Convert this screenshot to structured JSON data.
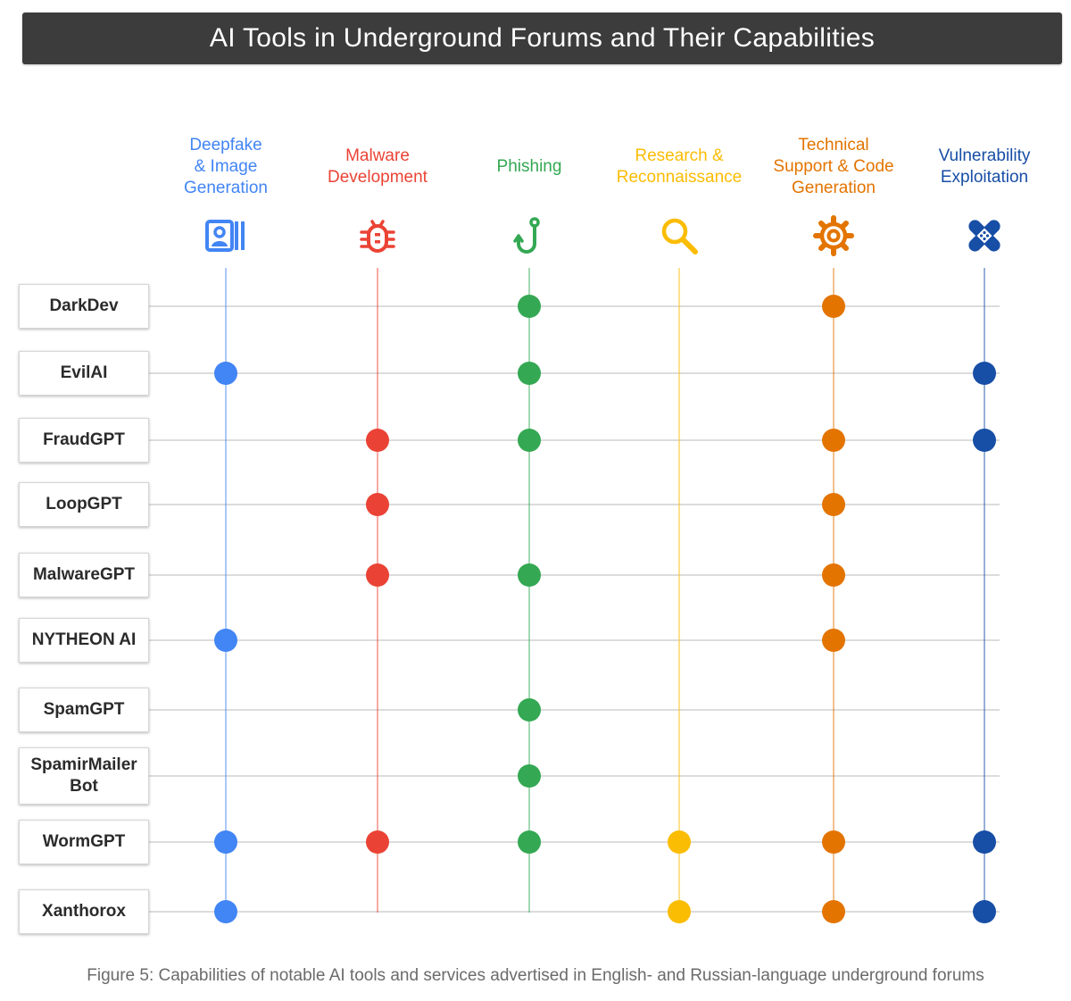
{
  "title": "AI Tools in Underground Forums and Their Capabilities",
  "columns": [
    {
      "id": "deepfake",
      "label": "Deepfake\n& Image\nGeneration",
      "icon": "image-generation-icon",
      "color": "#4285F4"
    },
    {
      "id": "malware",
      "label": "Malware\nDevelopment",
      "icon": "bug-icon",
      "color": "#EA4335"
    },
    {
      "id": "phishing",
      "label": "Phishing",
      "icon": "fishing-hook-icon",
      "color": "#34A853"
    },
    {
      "id": "recon",
      "label": "Research &\nReconnaissance",
      "icon": "magnifying-glass-icon",
      "color": "#FBBC04"
    },
    {
      "id": "techsupport",
      "label": "Technical\nSupport & Code\nGeneration",
      "icon": "gear-icon",
      "color": "#E37400"
    },
    {
      "id": "vuln",
      "label": "Vulnerability\nExploitation",
      "icon": "bandage-icon",
      "color": "#174EA6"
    }
  ],
  "rows": [
    {
      "name": "DarkDev",
      "capabilities": [
        "phishing",
        "techsupport"
      ]
    },
    {
      "name": "EvilAI",
      "capabilities": [
        "deepfake",
        "phishing",
        "vuln"
      ]
    },
    {
      "name": "FraudGPT",
      "capabilities": [
        "malware",
        "phishing",
        "techsupport",
        "vuln"
      ]
    },
    {
      "name": "LoopGPT",
      "capabilities": [
        "malware",
        "techsupport"
      ]
    },
    {
      "name": "MalwareGPT",
      "capabilities": [
        "malware",
        "phishing",
        "techsupport"
      ]
    },
    {
      "name": "NYTHEON AI",
      "capabilities": [
        "deepfake",
        "techsupport"
      ]
    },
    {
      "name": "SpamGPT",
      "capabilities": [
        "phishing"
      ]
    },
    {
      "name": "SpamirMailer\nBot",
      "capabilities": [
        "phishing"
      ]
    },
    {
      "name": "WormGPT",
      "capabilities": [
        "deepfake",
        "malware",
        "phishing",
        "recon",
        "techsupport",
        "vuln"
      ]
    },
    {
      "name": "Xanthorox",
      "capabilities": [
        "deepfake",
        "recon",
        "techsupport",
        "vuln"
      ]
    }
  ],
  "caption": "Figure 5: Capabilities of notable AI tools and services advertised in English- and Russian-language underground forums"
}
